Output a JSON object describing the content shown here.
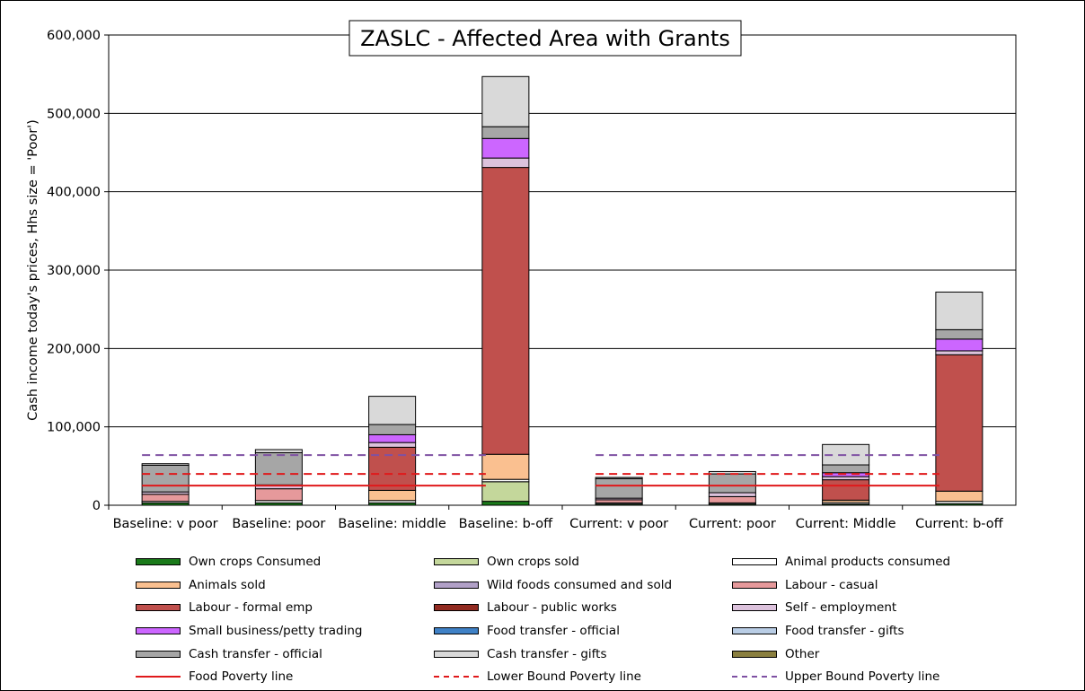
{
  "chart_data": {
    "type": "bar",
    "title": "ZASLC - Affected Area with Grants",
    "ylabel": "Cash income today's prices, Hhs size = 'Poor')",
    "xlabel": "",
    "ylim": [
      0,
      600000
    ],
    "yticks": [
      0,
      100000,
      200000,
      300000,
      400000,
      500000,
      600000
    ],
    "ytick_labels": [
      "0",
      "100,000",
      "200,000",
      "300,000",
      "400,000",
      "500,000",
      "600,000"
    ],
    "grid": true,
    "legend_position": "bottom",
    "categories": [
      "Baseline: v poor",
      "Baseline: poor",
      "Baseline: middle",
      "Baseline: b-off",
      "Current: v poor",
      "Current: poor",
      "Current: Middle",
      "Current: b-off"
    ],
    "series": [
      {
        "name": "Own crops Consumed",
        "color": "#1a7a1a",
        "values": [
          3000,
          3000,
          3000,
          5000,
          1500,
          1500,
          1500,
          2000
        ]
      },
      {
        "name": "Own crops sold",
        "color": "#c4d79b",
        "values": [
          0,
          0,
          0,
          25000,
          0,
          0,
          0,
          0
        ]
      },
      {
        "name": "Animal products consumed",
        "color": "#ffffff",
        "values": [
          2000,
          3000,
          3000,
          3000,
          1500,
          1500,
          2000,
          3000
        ]
      },
      {
        "name": "Animals sold",
        "color": "#fac090",
        "values": [
          0,
          0,
          13000,
          32000,
          0,
          0,
          3000,
          13000
        ]
      },
      {
        "name": "Wild foods consumed and sold",
        "color": "#b1a0c7",
        "values": [
          0,
          0,
          0,
          0,
          0,
          0,
          0,
          0
        ]
      },
      {
        "name": "Labour - casual",
        "color": "#e6999b",
        "values": [
          9000,
          15000,
          0,
          0,
          4000,
          8000,
          0,
          0
        ]
      },
      {
        "name": "Labour - formal emp",
        "color": "#c0504d",
        "values": [
          0,
          0,
          55000,
          366000,
          0,
          0,
          26000,
          174000
        ]
      },
      {
        "name": "Labour - public works",
        "color": "#922b21",
        "values": [
          0,
          0,
          0,
          0,
          0,
          0,
          0,
          0
        ]
      },
      {
        "name": "Self - employment",
        "color": "#dcc2dc",
        "values": [
          3000,
          5000,
          6000,
          12000,
          2000,
          5000,
          4000,
          5000
        ]
      },
      {
        "name": "Small business/petty trading",
        "color": "#cc66ff",
        "values": [
          0,
          0,
          10000,
          25000,
          0,
          0,
          5000,
          15000
        ]
      },
      {
        "name": "Food transfer - official",
        "color": "#3f81c6",
        "values": [
          0,
          0,
          0,
          0,
          0,
          0,
          0,
          0
        ]
      },
      {
        "name": "Food transfer - gifts",
        "color": "#b9cde5",
        "values": [
          0,
          0,
          0,
          0,
          0,
          0,
          0,
          0
        ]
      },
      {
        "name": "Cash transfer - official",
        "color": "#a6a6a6",
        "values": [
          34000,
          41000,
          13000,
          15000,
          25000,
          24000,
          10000,
          12000
        ]
      },
      {
        "name": "Cash transfer - gifts",
        "color": "#d9d9d9",
        "values": [
          2000,
          4000,
          36000,
          64000,
          1500,
          3000,
          26000,
          48000
        ]
      },
      {
        "name": "Other",
        "color": "#8a7f3f",
        "values": [
          0,
          0,
          0,
          0,
          0,
          0,
          0,
          0
        ]
      }
    ],
    "reference_lines": [
      {
        "name": "Food Poverty line",
        "style": "solid",
        "color": "#e0191b",
        "value": 25000
      },
      {
        "name": "Lower Bound Poverty line",
        "style": "dashed",
        "color": "#e0191b",
        "value": 40000
      },
      {
        "name": "Upper Bound Poverty line",
        "style": "dashed",
        "color": "#7f51a3",
        "value": 64000
      }
    ]
  }
}
